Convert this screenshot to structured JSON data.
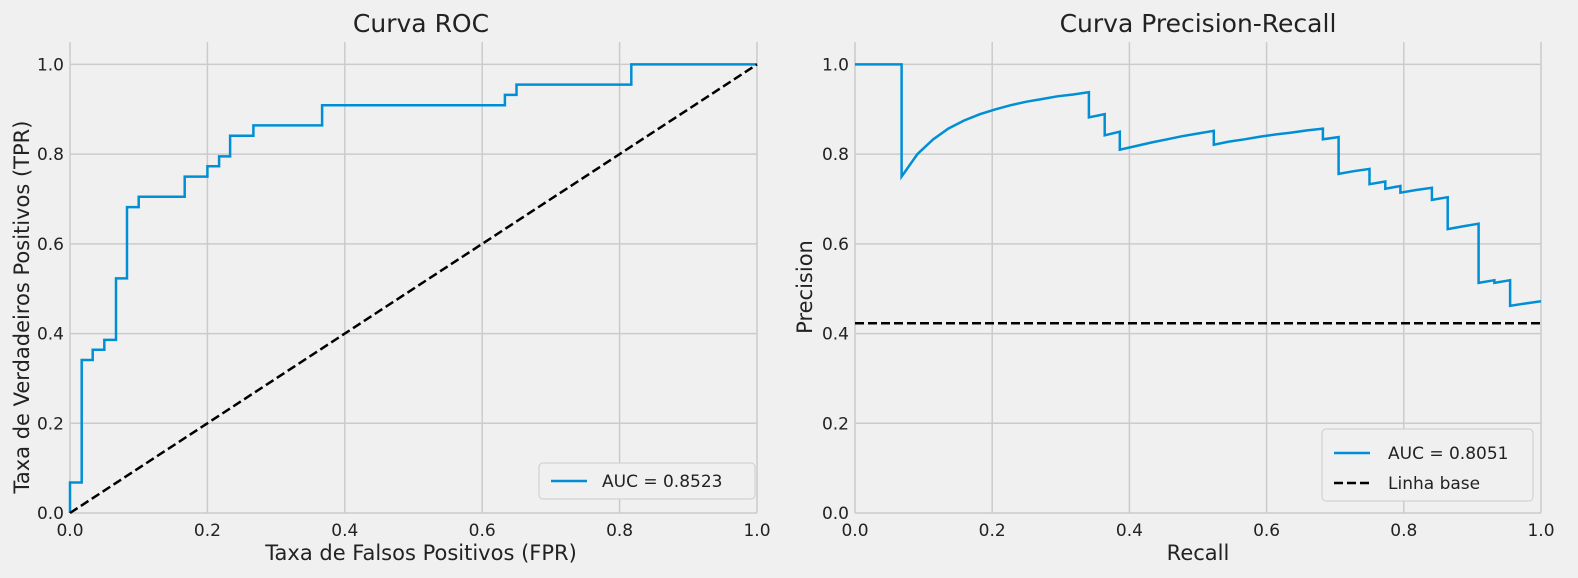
{
  "colors": {
    "background": "#f0f0f0",
    "grid": "#cbcbcb",
    "series": "#008fd5",
    "baseline": "#000000"
  },
  "chart_data": [
    {
      "type": "line",
      "title": "Curva ROC",
      "xlabel": "Taxa de Falsos Positivos (FPR)",
      "ylabel": "Taxa de Verdadeiros Positivos (TPR)",
      "xlim": [
        0,
        1
      ],
      "ylim": [
        0,
        1.05
      ],
      "xticks": [
        "0.0",
        "0.2",
        "0.4",
        "0.6",
        "0.8",
        "1.0"
      ],
      "yticks": [
        "0.0",
        "0.2",
        "0.4",
        "0.6",
        "0.8",
        "1.0"
      ],
      "grid": true,
      "legend_position": "lower-right",
      "series": [
        {
          "name": "AUC = 0.8523",
          "color": "#008fd5",
          "style": "solid",
          "x": [
            0,
            0,
            0.017,
            0.017,
            0.033,
            0.033,
            0.05,
            0.05,
            0.067,
            0.067,
            0.083,
            0.083,
            0.1,
            0.1,
            0.167,
            0.167,
            0.2,
            0.2,
            0.217,
            0.217,
            0.233,
            0.233,
            0.267,
            0.267,
            0.367,
            0.367,
            0.633,
            0.633,
            0.65,
            0.65,
            0.817,
            0.817,
            1.0
          ],
          "y": [
            0,
            0.068,
            0.068,
            0.341,
            0.341,
            0.364,
            0.364,
            0.386,
            0.386,
            0.523,
            0.523,
            0.682,
            0.682,
            0.705,
            0.705,
            0.75,
            0.75,
            0.773,
            0.773,
            0.795,
            0.795,
            0.841,
            0.841,
            0.864,
            0.864,
            0.909,
            0.909,
            0.932,
            0.932,
            0.955,
            0.955,
            1.0,
            1.0
          ]
        },
        {
          "name": "",
          "color": "#000000",
          "style": "dashed",
          "x": [
            0,
            1
          ],
          "y": [
            0,
            1
          ]
        }
      ]
    },
    {
      "type": "line",
      "title": "Curva Precision-Recall",
      "xlabel": "Recall",
      "ylabel": "Precision",
      "xlim": [
        0,
        1
      ],
      "ylim": [
        0,
        1.05
      ],
      "xticks": [
        "0.0",
        "0.2",
        "0.4",
        "0.6",
        "0.8",
        "1.0"
      ],
      "yticks": [
        "0.0",
        "0.2",
        "0.4",
        "0.6",
        "0.8",
        "1.0"
      ],
      "grid": true,
      "legend_position": "lower-right",
      "series": [
        {
          "name": "AUC = 0.8051",
          "color": "#008fd5",
          "style": "solid",
          "x": [
            0,
            0.068,
            0.068,
            0.091,
            0.114,
            0.136,
            0.159,
            0.182,
            0.205,
            0.227,
            0.25,
            0.273,
            0.295,
            0.318,
            0.341,
            0.341,
            0.364,
            0.364,
            0.386,
            0.386,
            0.409,
            0.432,
            0.455,
            0.477,
            0.5,
            0.523,
            0.523,
            0.545,
            0.568,
            0.591,
            0.614,
            0.636,
            0.659,
            0.682,
            0.682,
            0.705,
            0.705,
            0.727,
            0.75,
            0.75,
            0.773,
            0.773,
            0.795,
            0.795,
            0.818,
            0.841,
            0.841,
            0.864,
            0.864,
            0.886,
            0.909,
            0.909,
            0.932,
            0.932,
            0.955,
            0.955,
            0.977,
            1.0
          ],
          "y": [
            1.0,
            1.0,
            0.75,
            0.8,
            0.833,
            0.857,
            0.875,
            0.889,
            0.9,
            0.909,
            0.917,
            0.923,
            0.929,
            0.933,
            0.938,
            0.882,
            0.889,
            0.842,
            0.85,
            0.81,
            0.818,
            0.826,
            0.833,
            0.84,
            0.846,
            0.852,
            0.821,
            0.828,
            0.833,
            0.839,
            0.844,
            0.848,
            0.853,
            0.857,
            0.833,
            0.838,
            0.756,
            0.762,
            0.767,
            0.733,
            0.739,
            0.723,
            0.729,
            0.714,
            0.72,
            0.725,
            0.698,
            0.704,
            0.633,
            0.639,
            0.645,
            0.513,
            0.519,
            0.513,
            0.519,
            0.462,
            0.467,
            0.472
          ]
        },
        {
          "name": "Linha base",
          "color": "#000000",
          "style": "dashed",
          "x": [
            0,
            1
          ],
          "y": [
            0.423,
            0.423
          ]
        }
      ]
    }
  ]
}
